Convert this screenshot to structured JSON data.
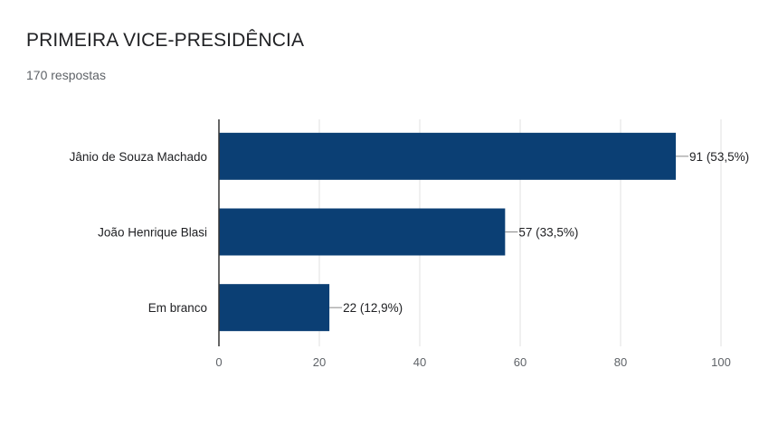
{
  "header": {
    "title": "PRIMEIRA VICE-PRESIDÊNCIA",
    "subtitle": "170 respostas"
  },
  "chart_data": {
    "type": "bar",
    "orientation": "horizontal",
    "categories": [
      "Jânio de Souza Machado",
      "João Henrique Blasi",
      "Em branco"
    ],
    "values": [
      91,
      57,
      22
    ],
    "data_labels": [
      "91 (53,5%)",
      "57 (33,5%)",
      "22 (12,9%)"
    ],
    "xlim": [
      0,
      100
    ],
    "xticks": [
      0,
      20,
      40,
      60,
      80,
      100
    ],
    "grid": true,
    "legend": "none",
    "colors": {
      "bar": "#0b3f74",
      "grid": "#e0e0e0",
      "axis": "#333333",
      "connector": "#888888"
    }
  }
}
